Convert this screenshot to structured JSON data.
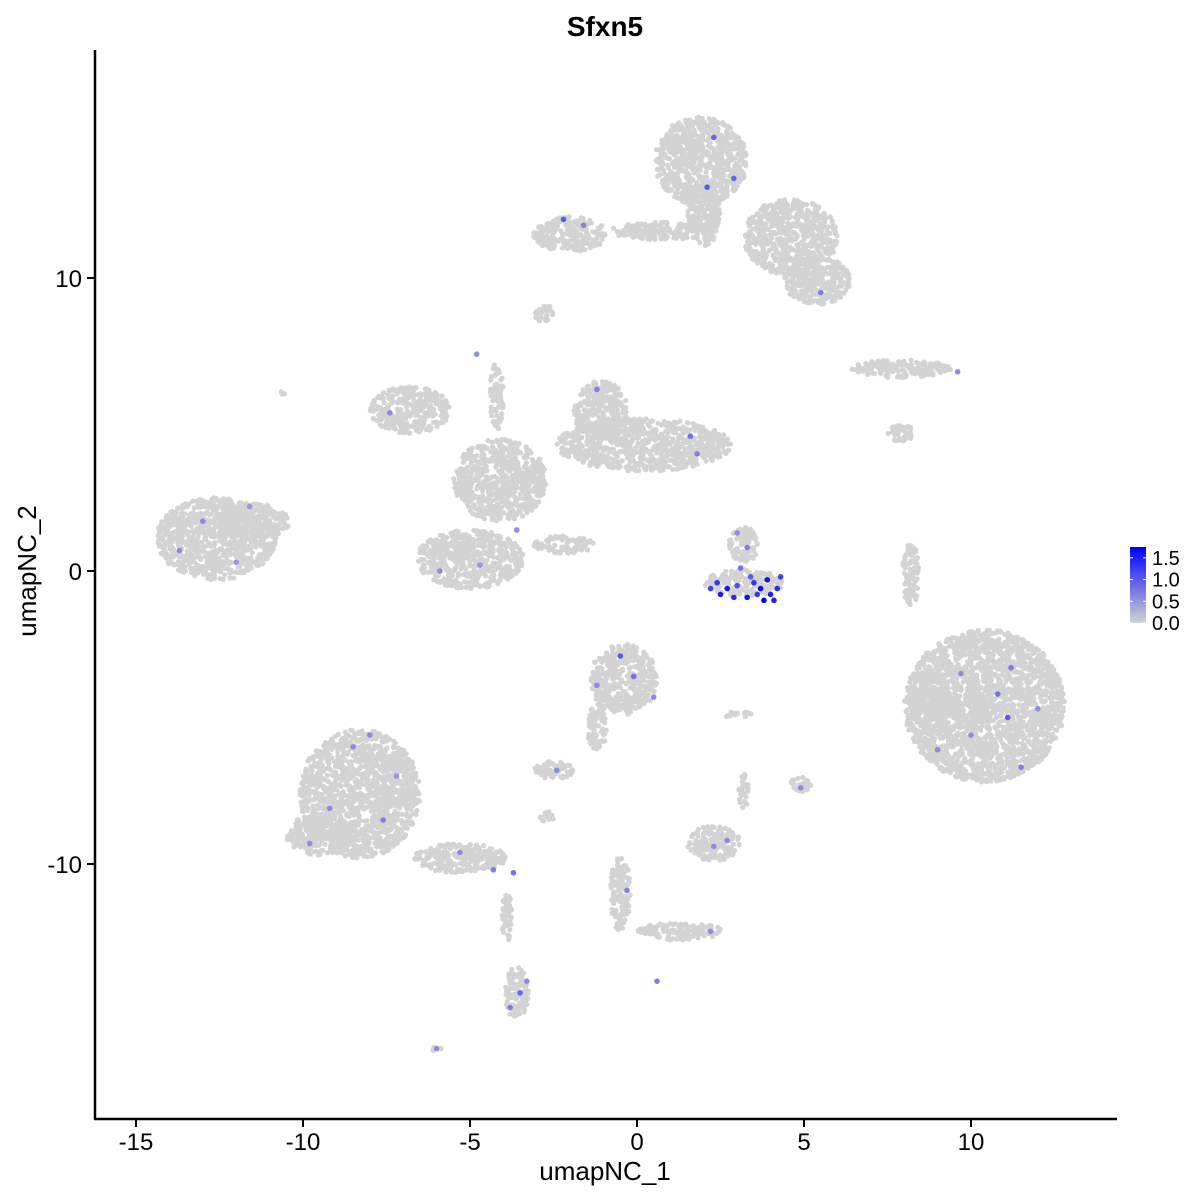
{
  "chart_data": {
    "type": "scatter",
    "title": "Sfxn5",
    "xlabel": "umapNC_1",
    "ylabel": "umapNC_2",
    "xlim": [
      -16.5,
      14.5
    ],
    "ylim": [
      -18.5,
      17.7
    ],
    "xticks": [
      -15,
      -10,
      -5,
      0,
      5,
      10
    ],
    "yticks": [
      -10,
      0,
      10
    ],
    "grid": false,
    "legend": {
      "position": "right",
      "ticks": [
        0.0,
        0.5,
        1.0,
        1.5
      ],
      "tick_labels": [
        "0.0",
        "0.5",
        "1.0",
        "1.5"
      ],
      "range": [
        0,
        1.75
      ]
    },
    "colors": {
      "low": "#d3d3d3",
      "high": "#0000ff"
    },
    "cell_regions": [
      {
        "cx": 1.9,
        "cy": 14.0,
        "rx": 1.4,
        "ry": 1.5
      },
      {
        "cx": 4.6,
        "cy": 11.4,
        "rx": 1.4,
        "ry": 1.3
      },
      {
        "cx": 5.4,
        "cy": 9.9,
        "rx": 1.0,
        "ry": 0.8
      },
      {
        "cx": -2.0,
        "cy": 11.5,
        "rx": 1.1,
        "ry": 0.6
      },
      {
        "cx": 0.7,
        "cy": 11.6,
        "rx": 1.5,
        "ry": 0.3
      },
      {
        "cx": 2.0,
        "cy": 12.2,
        "rx": 0.5,
        "ry": 1.1
      },
      {
        "cx": 7.9,
        "cy": 6.9,
        "rx": 1.5,
        "ry": 0.3
      },
      {
        "cx": -12.6,
        "cy": 1.1,
        "rx": 1.8,
        "ry": 1.4
      },
      {
        "cx": -11.5,
        "cy": 1.7,
        "rx": 1.1,
        "ry": 0.6
      },
      {
        "cx": -6.8,
        "cy": 5.5,
        "rx": 1.2,
        "ry": 0.8
      },
      {
        "cx": -4.1,
        "cy": 3.1,
        "rx": 1.4,
        "ry": 1.4
      },
      {
        "cx": 0.2,
        "cy": 4.3,
        "rx": 2.6,
        "ry": 0.9
      },
      {
        "cx": -1.1,
        "cy": 5.5,
        "rx": 0.8,
        "ry": 1.0
      },
      {
        "cx": -5.0,
        "cy": 0.4,
        "rx": 1.6,
        "ry": 1.0
      },
      {
        "cx": -4.2,
        "cy": 6.0,
        "rx": 0.2,
        "ry": 1.2
      },
      {
        "cx": -2.2,
        "cy": 0.9,
        "rx": 0.9,
        "ry": 0.3
      },
      {
        "cx": 3.2,
        "cy": -0.4,
        "rx": 1.2,
        "ry": 0.45
      },
      {
        "cx": 3.2,
        "cy": 0.9,
        "rx": 0.45,
        "ry": 0.6
      },
      {
        "cx": 10.4,
        "cy": -4.6,
        "rx": 2.4,
        "ry": 2.6
      },
      {
        "cx": 8.8,
        "cy": -4.4,
        "rx": 0.6,
        "ry": 1.0
      },
      {
        "cx": 8.2,
        "cy": -0.1,
        "rx": 0.25,
        "ry": 1.1
      },
      {
        "cx": -8.3,
        "cy": -7.6,
        "rx": 1.8,
        "ry": 2.2
      },
      {
        "cx": -9.5,
        "cy": -9.0,
        "rx": 1.0,
        "ry": 0.7
      },
      {
        "cx": -5.3,
        "cy": -9.8,
        "rx": 1.4,
        "ry": 0.5
      },
      {
        "cx": -3.6,
        "cy": -14.4,
        "rx": 0.35,
        "ry": 0.9
      },
      {
        "cx": -3.9,
        "cy": -11.8,
        "rx": 0.15,
        "ry": 0.9
      },
      {
        "cx": -0.4,
        "cy": -3.7,
        "rx": 1.0,
        "ry": 1.2
      },
      {
        "cx": -1.2,
        "cy": -5.3,
        "rx": 0.3,
        "ry": 0.8
      },
      {
        "cx": -2.5,
        "cy": -6.8,
        "rx": 0.6,
        "ry": 0.3
      },
      {
        "cx": 2.3,
        "cy": -9.3,
        "rx": 0.8,
        "ry": 0.6
      },
      {
        "cx": 3.2,
        "cy": -7.5,
        "rx": 0.15,
        "ry": 0.6
      },
      {
        "cx": -0.5,
        "cy": -11.0,
        "rx": 0.3,
        "ry": 1.3
      },
      {
        "cx": 1.3,
        "cy": -12.3,
        "rx": 1.3,
        "ry": 0.3
      },
      {
        "cx": 4.9,
        "cy": -7.3,
        "rx": 0.3,
        "ry": 0.3
      },
      {
        "cx": 3.0,
        "cy": -4.9,
        "rx": 0.5,
        "ry": 0.1
      },
      {
        "cx": -6.0,
        "cy": -16.3,
        "rx": 0.15,
        "ry": 0.1
      },
      {
        "cx": -2.7,
        "cy": -8.4,
        "rx": 0.2,
        "ry": 0.2
      },
      {
        "cx": -10.6,
        "cy": 6.1,
        "rx": 0.1,
        "ry": 0.1
      },
      {
        "cx": -2.8,
        "cy": 8.8,
        "rx": 0.3,
        "ry": 0.3
      },
      {
        "cx": 7.9,
        "cy": 4.7,
        "rx": 0.4,
        "ry": 0.3
      }
    ],
    "expressing_cells": [
      {
        "x": 2.5,
        "y": -0.8,
        "v": 1.5
      },
      {
        "x": 2.9,
        "y": -0.9,
        "v": 1.4
      },
      {
        "x": 3.3,
        "y": -0.9,
        "v": 1.6
      },
      {
        "x": 3.6,
        "y": -0.8,
        "v": 1.3
      },
      {
        "x": 3.8,
        "y": -1.0,
        "v": 1.75
      },
      {
        "x": 4.0,
        "y": -0.8,
        "v": 1.5
      },
      {
        "x": 4.2,
        "y": -0.6,
        "v": 1.4
      },
      {
        "x": 2.2,
        "y": -0.6,
        "v": 1.2
      },
      {
        "x": 3.0,
        "y": -0.5,
        "v": 1.1
      },
      {
        "x": 3.5,
        "y": -0.4,
        "v": 1.3
      },
      {
        "x": 3.9,
        "y": -0.3,
        "v": 1.6
      },
      {
        "x": 4.3,
        "y": -0.2,
        "v": 1.2
      },
      {
        "x": 2.7,
        "y": -0.6,
        "v": 1.6
      },
      {
        "x": 3.1,
        "y": 0.1,
        "v": 0.8
      },
      {
        "x": 3.3,
        "y": 0.8,
        "v": 0.7
      },
      {
        "x": 3.0,
        "y": 1.3,
        "v": 0.6
      },
      {
        "x": 3.4,
        "y": -0.2,
        "v": 1.0
      },
      {
        "x": 2.4,
        "y": -0.4,
        "v": 1.3
      },
      {
        "x": 3.7,
        "y": -0.6,
        "v": 1.7
      },
      {
        "x": 4.1,
        "y": -1.0,
        "v": 1.5
      },
      {
        "x": 2.3,
        "y": 14.8,
        "v": 0.9
      },
      {
        "x": 2.9,
        "y": 13.4,
        "v": 0.9
      },
      {
        "x": 2.1,
        "y": 13.1,
        "v": 1.0
      },
      {
        "x": -2.2,
        "y": 12.0,
        "v": 1.0
      },
      {
        "x": -1.6,
        "y": 11.8,
        "v": 0.7
      },
      {
        "x": 5.5,
        "y": 9.5,
        "v": 0.7
      },
      {
        "x": 9.6,
        "y": 6.8,
        "v": 0.6
      },
      {
        "x": -13.0,
        "y": 1.7,
        "v": 0.6
      },
      {
        "x": -12.0,
        "y": 0.3,
        "v": 0.5
      },
      {
        "x": -13.7,
        "y": 0.7,
        "v": 0.6
      },
      {
        "x": -11.6,
        "y": 2.2,
        "v": 0.5
      },
      {
        "x": -7.4,
        "y": 5.4,
        "v": 0.6
      },
      {
        "x": -4.8,
        "y": 7.4,
        "v": 0.6
      },
      {
        "x": -1.2,
        "y": 6.2,
        "v": 0.7
      },
      {
        "x": 1.6,
        "y": 4.6,
        "v": 0.8
      },
      {
        "x": 1.8,
        "y": 4.0,
        "v": 0.7
      },
      {
        "x": -5.9,
        "y": 0.0,
        "v": 0.6
      },
      {
        "x": -4.7,
        "y": 0.2,
        "v": 0.5
      },
      {
        "x": -3.6,
        "y": 1.4,
        "v": 0.6
      },
      {
        "x": -0.5,
        "y": -2.9,
        "v": 1.0
      },
      {
        "x": -0.1,
        "y": -3.6,
        "v": 0.8
      },
      {
        "x": 0.5,
        "y": -4.3,
        "v": 0.6
      },
      {
        "x": -1.2,
        "y": -3.9,
        "v": 0.6
      },
      {
        "x": 10.8,
        "y": -4.2,
        "v": 0.8
      },
      {
        "x": 11.1,
        "y": -5.0,
        "v": 1.0
      },
      {
        "x": 9.7,
        "y": -3.5,
        "v": 0.6
      },
      {
        "x": 11.5,
        "y": -6.7,
        "v": 0.7
      },
      {
        "x": 9.0,
        "y": -6.1,
        "v": 0.6
      },
      {
        "x": 12.0,
        "y": -4.7,
        "v": 0.6
      },
      {
        "x": 10.0,
        "y": -5.6,
        "v": 0.6
      },
      {
        "x": 11.2,
        "y": -3.3,
        "v": 0.7
      },
      {
        "x": -8.5,
        "y": -6.0,
        "v": 0.6
      },
      {
        "x": -9.2,
        "y": -8.1,
        "v": 0.6
      },
      {
        "x": -7.6,
        "y": -8.5,
        "v": 0.7
      },
      {
        "x": -8.0,
        "y": -5.6,
        "v": 0.6
      },
      {
        "x": -9.8,
        "y": -9.3,
        "v": 0.6
      },
      {
        "x": -7.2,
        "y": -7.0,
        "v": 0.5
      },
      {
        "x": -5.3,
        "y": -9.6,
        "v": 0.6
      },
      {
        "x": -4.3,
        "y": -10.2,
        "v": 0.7
      },
      {
        "x": -3.7,
        "y": -10.3,
        "v": 0.8
      },
      {
        "x": -3.5,
        "y": -14.4,
        "v": 0.9
      },
      {
        "x": -3.8,
        "y": -14.9,
        "v": 0.7
      },
      {
        "x": -3.3,
        "y": -14.0,
        "v": 0.6
      },
      {
        "x": -6.0,
        "y": -16.3,
        "v": 0.6
      },
      {
        "x": 2.3,
        "y": -9.4,
        "v": 0.6
      },
      {
        "x": 2.7,
        "y": -9.2,
        "v": 0.6
      },
      {
        "x": -0.3,
        "y": -10.9,
        "v": 0.7
      },
      {
        "x": 2.2,
        "y": -12.3,
        "v": 0.6
      },
      {
        "x": 4.9,
        "y": -7.4,
        "v": 0.6
      },
      {
        "x": -2.4,
        "y": -6.8,
        "v": 0.6
      },
      {
        "x": 0.6,
        "y": -14.0,
        "v": 0.7
      }
    ]
  }
}
